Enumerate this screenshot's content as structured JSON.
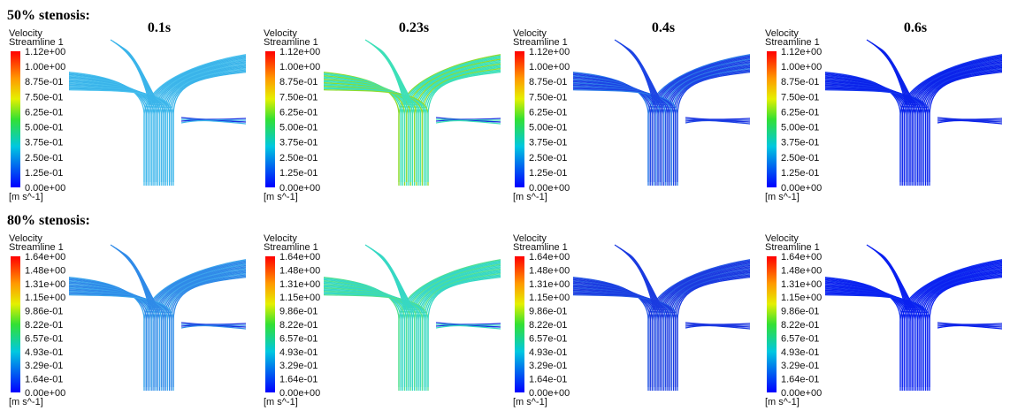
{
  "times": [
    "0.1s",
    "0.23s",
    "0.4s",
    "0.6s"
  ],
  "rows": [
    {
      "label": "50% stenosis:",
      "legend": {
        "title": "Velocity",
        "subtitle": "Streamline 1",
        "unit": "[m s^-1]",
        "ticks": [
          "1.12e+00",
          "1.00e+00",
          "8.75e-01",
          "7.50e-01",
          "6.25e-01",
          "5.00e-01",
          "3.75e-01",
          "2.50e-01",
          "1.25e-01",
          "0.00e+00"
        ]
      }
    },
    {
      "label": "80% stenosis:",
      "legend": {
        "title": "Velocity",
        "subtitle": "Streamline 1",
        "unit": "[m s^-1]",
        "ticks": [
          "1.64e+00",
          "1.48e+00",
          "1.31e+00",
          "1.15e+00",
          "9.86e-01",
          "8.22e-01",
          "6.57e-01",
          "4.93e-01",
          "3.29e-01",
          "1.64e-01",
          "0.00e+00"
        ]
      }
    }
  ]
}
